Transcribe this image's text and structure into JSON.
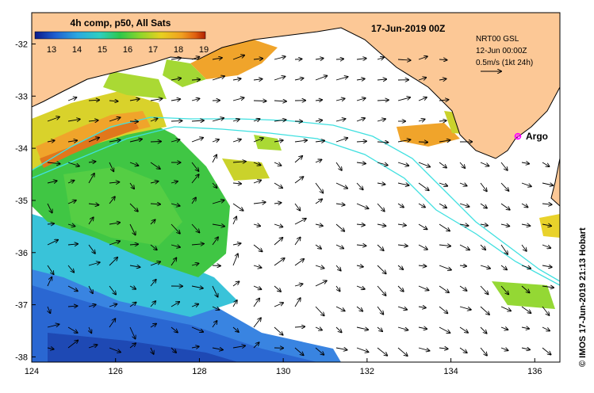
{
  "colorbar": {
    "title": "4h comp, p50, All Sats",
    "ticks": [
      "13",
      "14",
      "15",
      "16",
      "17",
      "18",
      "19"
    ],
    "colors": [
      "#0a1a8a",
      "#1f5fd0",
      "#2aa8e0",
      "#2ecfc0",
      "#2ec84a",
      "#8fd62a",
      "#e8d020",
      "#f0a020",
      "#e06010",
      "#b02000"
    ]
  },
  "header": {
    "datetime": "17-Jun-2019 00Z"
  },
  "info": {
    "line1": "NRT00 GSL",
    "line2": "12-Jun 00:00Z",
    "line3": "0.5m/s (1kt 24h)"
  },
  "argo": {
    "label": "Argo",
    "color": "#ff00ff"
  },
  "axes": {
    "x_ticks": [
      "124",
      "126",
      "128",
      "130",
      "132",
      "134",
      "136"
    ],
    "y_ticks": [
      "-32",
      "-33",
      "-34",
      "-35",
      "-36",
      "-37",
      "-38"
    ],
    "lon_range": [
      124,
      136.6
    ],
    "lat_range": [
      -38.1,
      -31.4
    ]
  },
  "credit": "© IMOS 17-Jun-2019 21:13 Hobart",
  "colors": {
    "land": "#fcc896",
    "current_line": "#40e0e0",
    "arrow": "#000000"
  }
}
